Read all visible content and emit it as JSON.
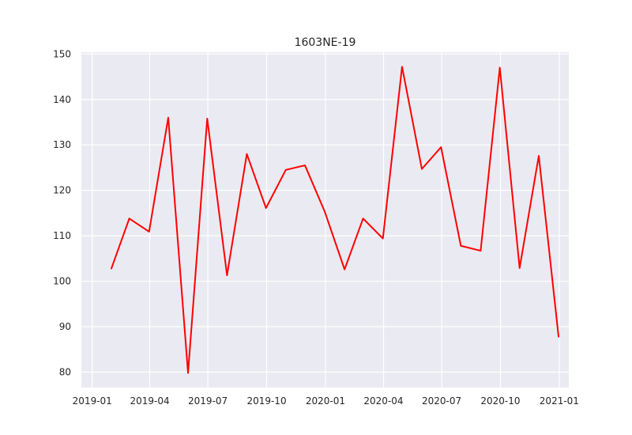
{
  "chart_data": {
    "type": "line",
    "title": "1603NE-19",
    "xlabel": "",
    "ylabel": "",
    "x": [
      "2019-01-31",
      "2019-02-28",
      "2019-03-31",
      "2019-04-30",
      "2019-05-31",
      "2019-06-30",
      "2019-07-31",
      "2019-08-31",
      "2019-09-30",
      "2019-10-31",
      "2019-11-30",
      "2019-12-31",
      "2020-01-31",
      "2020-02-29",
      "2020-03-31",
      "2020-04-30",
      "2020-05-31",
      "2020-06-30",
      "2020-07-31",
      "2020-08-31",
      "2020-09-30",
      "2020-10-31",
      "2020-11-30",
      "2020-12-31"
    ],
    "series": [
      {
        "color": "#ff0000",
        "values": [
          102.8,
          113.8,
          110.9,
          136.0,
          79.8,
          135.8,
          101.3,
          128.0,
          116.1,
          124.5,
          125.5,
          115.3,
          102.6,
          113.8,
          109.4,
          147.2,
          124.7,
          129.5,
          107.8,
          106.7,
          147.0,
          102.9,
          127.6,
          87.8
        ]
      }
    ],
    "xlim": [
      "2018-12-15",
      "2021-01-16"
    ],
    "ylim": [
      76.6,
      150.4
    ],
    "x_ticks": [
      "2019-01-01",
      "2019-04-01",
      "2019-07-01",
      "2019-10-01",
      "2020-01-01",
      "2020-04-01",
      "2020-07-01",
      "2020-10-01",
      "2021-01-01"
    ],
    "x_tick_labels": [
      "2019-01",
      "2019-04",
      "2019-07",
      "2019-10",
      "2020-01",
      "2020-04",
      "2020-07",
      "2020-10",
      "2021-01"
    ],
    "y_ticks": [
      80,
      90,
      100,
      110,
      120,
      130,
      140,
      150
    ],
    "y_tick_labels": [
      "80",
      "90",
      "100",
      "110",
      "120",
      "130",
      "140",
      "150"
    ],
    "grid": true,
    "legend": "none",
    "background_color": "#eaeaf2"
  }
}
